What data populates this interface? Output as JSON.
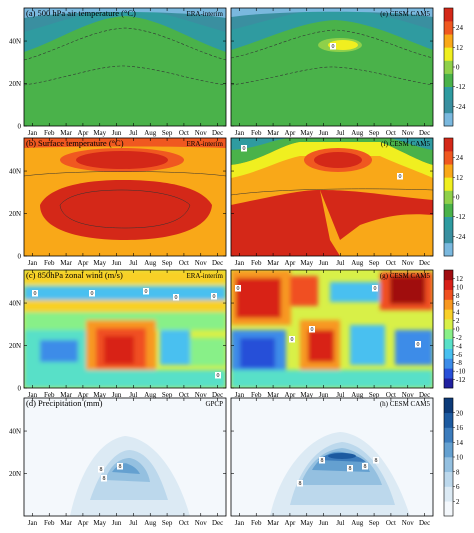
{
  "chart_data": {
    "type": "heatmap",
    "x_tick_labels": [
      "Jan",
      "Feb",
      "Mar",
      "Apr",
      "May",
      "Jun",
      "Jul",
      "Aug",
      "Sep",
      "Oct",
      "Nov",
      "Dec"
    ],
    "rows": [
      {
        "title": "(a) 500 hPa air temperature (°C)",
        "y_ticks_left": [
          "0",
          "20N",
          "40N"
        ],
        "colorbar": {
          "ticks": [
            "24",
            "12",
            "0",
            "-12",
            "-24"
          ],
          "colors": [
            "#7ab8de",
            "#3a8fa0",
            "#2f9ba0",
            "#4ab24a",
            "#8fd04a",
            "#f0ef20",
            "#f9a818",
            "#f05820",
            "#d42818"
          ]
        },
        "panels": [
          {
            "tag": "ERA-interim",
            "contour_labels": []
          },
          {
            "tag": "(e) CESM CAM5",
            "contour_labels": [
              "0"
            ]
          }
        ]
      },
      {
        "title": "(b) Surface temperature (°C)",
        "y_ticks_left": [
          "0",
          "20N",
          "40N"
        ],
        "colorbar": {
          "ticks": [
            "24",
            "12",
            "0",
            "-12",
            "-24"
          ],
          "colors": [
            "#7ab8de",
            "#3a8fa0",
            "#2f9ba0",
            "#4ab24a",
            "#8fd04a",
            "#f0ef20",
            "#f9a818",
            "#f05820",
            "#d42818"
          ]
        },
        "panels": [
          {
            "tag": "ERA-interim",
            "contour_labels": []
          },
          {
            "tag": "(f) CESM CAM5",
            "contour_labels": [
              "0",
              "0"
            ]
          }
        ]
      },
      {
        "title": "(c) 850hPa zonal wind (m/s)",
        "y_ticks_left": [
          "0",
          "20N",
          "40N"
        ],
        "colorbar": {
          "ticks": [
            "12",
            "10",
            "8",
            "6",
            "4",
            "2",
            "0",
            "-2",
            "-4",
            "-6",
            "-8",
            "-10",
            "-12"
          ],
          "colors": [
            "#2020a0",
            "#2850d8",
            "#3c8ce8",
            "#48c0f0",
            "#58e0c8",
            "#88f088",
            "#d8f048",
            "#f8d028",
            "#f89820",
            "#f05020",
            "#d82018",
            "#a00c10"
          ]
        },
        "panels": [
          {
            "tag": "ERA-interim",
            "contour_labels": [
              "0",
              "0",
              "0",
              "0",
              "0",
              "0"
            ]
          },
          {
            "tag": "(g) CESM CAM5",
            "contour_labels": [
              "0",
              "0",
              "0",
              "0",
              "0"
            ]
          }
        ]
      },
      {
        "title": "(d) Precipitation (mm)",
        "y_ticks_left": [
          "20N",
          "40N"
        ],
        "colorbar": {
          "ticks": [
            "20",
            "16",
            "14",
            "10",
            "8",
            "6",
            "2"
          ],
          "colors": [
            "#f4f8fc",
            "#dceaf4",
            "#bcd8ec",
            "#94c0e0",
            "#64a0d0",
            "#3c7cbc",
            "#1c5aa0",
            "#0c3a78"
          ]
        },
        "panels": [
          {
            "tag": "GPCP",
            "contour_labels": [
              "8",
              "8",
              "8"
            ]
          },
          {
            "tag": "(h) CESM CAM5",
            "contour_labels": [
              "8",
              "8",
              "8",
              "8",
              "8"
            ]
          }
        ]
      }
    ]
  }
}
